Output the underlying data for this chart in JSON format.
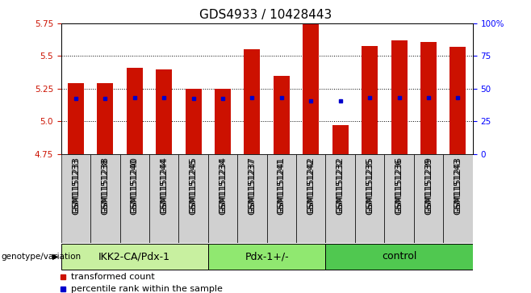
{
  "title": "GDS4933 / 10428443",
  "samples": [
    "GSM1151233",
    "GSM1151238",
    "GSM1151240",
    "GSM1151244",
    "GSM1151245",
    "GSM1151234",
    "GSM1151237",
    "GSM1151241",
    "GSM1151242",
    "GSM1151232",
    "GSM1151235",
    "GSM1151236",
    "GSM1151239",
    "GSM1151243"
  ],
  "bar_values": [
    5.29,
    5.29,
    5.41,
    5.4,
    5.25,
    5.25,
    5.55,
    5.35,
    5.75,
    4.97,
    5.58,
    5.62,
    5.61,
    5.57
  ],
  "blue_values": [
    5.175,
    5.172,
    5.178,
    5.182,
    5.172,
    5.172,
    5.182,
    5.178,
    5.155,
    5.155,
    5.182,
    5.182,
    5.182,
    5.182
  ],
  "groups": [
    {
      "label": "IKK2-CA/Pdx-1",
      "start": 0,
      "end": 5,
      "color": "#c8f0a0"
    },
    {
      "label": "Pdx-1+/-",
      "start": 5,
      "end": 9,
      "color": "#90e870"
    },
    {
      "label": "control",
      "start": 9,
      "end": 14,
      "color": "#50c850"
    }
  ],
  "ylim": [
    4.75,
    5.75
  ],
  "yticks": [
    4.75,
    5.0,
    5.25,
    5.5,
    5.75
  ],
  "y2ticks": [
    0,
    25,
    50,
    75,
    100
  ],
  "bar_color": "#cc1100",
  "blue_color": "#0000cc",
  "bar_bottom": 4.75,
  "bar_width": 0.55,
  "genotype_label": "genotype/variation",
  "legend_items": [
    "transformed count",
    "percentile rank within the sample"
  ],
  "title_fontsize": 11,
  "tick_fontsize": 7.5,
  "label_fontsize": 8,
  "group_label_fontsize": 9,
  "sample_bg_color": "#d0d0d0"
}
